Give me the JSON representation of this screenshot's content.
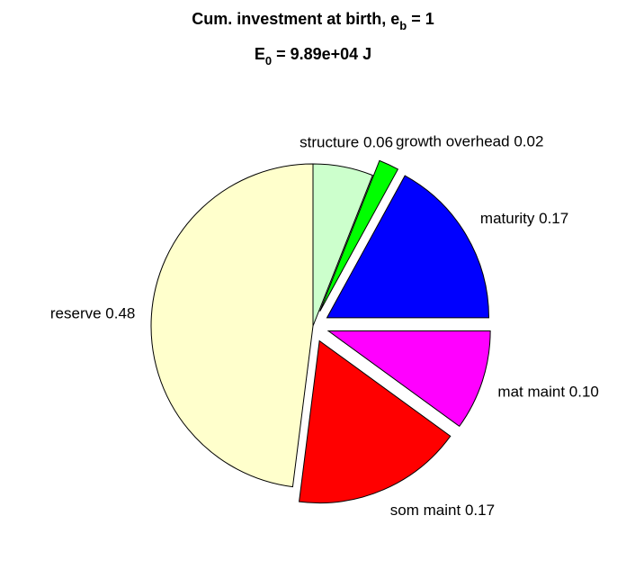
{
  "chart_data": {
    "type": "pie",
    "title": [
      "Cum. investment at birth, e",
      "b",
      " = 1"
    ],
    "subtitle": [
      "E",
      "0",
      " = 9.89e+04 J"
    ],
    "categories": [
      "structure",
      "growth overhead",
      "maturity",
      "mat maint",
      "som maint",
      "reserve"
    ],
    "values": [
      0.06,
      0.02,
      0.17,
      0.1,
      0.17,
      0.48
    ],
    "value_labels": [
      "0.06",
      "0.02",
      "0.17",
      "0.10",
      "0.17",
      "0.48"
    ],
    "colors": [
      "#ccffcc",
      "#00ff00",
      "#0000ff",
      "#ff00ff",
      "#ff0000",
      "#ffffcc"
    ],
    "explode": [
      false,
      true,
      true,
      true,
      true,
      false
    ]
  }
}
